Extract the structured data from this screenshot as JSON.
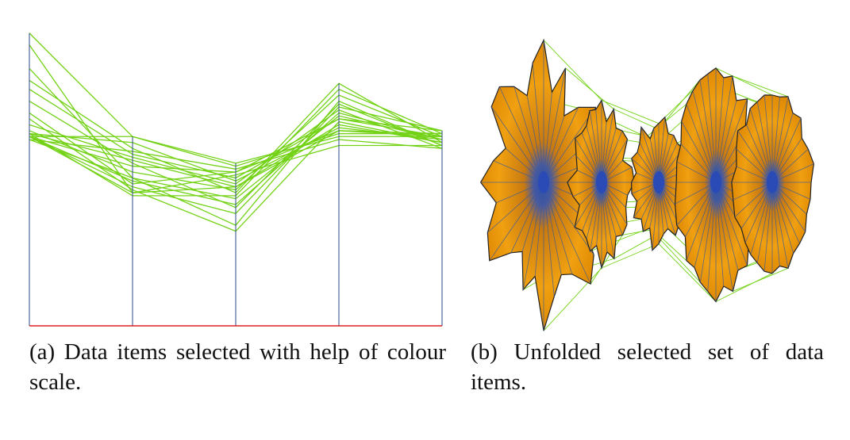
{
  "captions": {
    "a": "(a) Data items selected with help of colour scale.",
    "b": "(b) Unfolded selected set of data items."
  },
  "colors": {
    "line": "#73d216",
    "axis": "#2c4a8a",
    "baseline": "#e02020",
    "fan_orange": "#f0a010",
    "fan_dark": "#b56a06",
    "fan_center": "#2a4ab5"
  },
  "chart_data": [
    {
      "type": "line",
      "title": "",
      "axes": 5,
      "x": [
        0,
        1,
        2,
        3,
        4
      ],
      "ylim": [
        0,
        1
      ],
      "grid": false,
      "series_values": [
        [
          0.99,
          0.64,
          0.54,
          0.65,
          0.65
        ],
        [
          0.95,
          0.45,
          0.47,
          0.66,
          0.64
        ],
        [
          0.87,
          0.5,
          0.43,
          0.71,
          0.63
        ],
        [
          0.83,
          0.6,
          0.45,
          0.82,
          0.62
        ],
        [
          0.8,
          0.58,
          0.5,
          0.7,
          0.66
        ],
        [
          0.76,
          0.55,
          0.4,
          0.75,
          0.61
        ],
        [
          0.72,
          0.48,
          0.52,
          0.66,
          0.65
        ],
        [
          0.7,
          0.46,
          0.32,
          0.69,
          0.62
        ],
        [
          0.68,
          0.57,
          0.48,
          0.73,
          0.6
        ],
        [
          0.66,
          0.52,
          0.46,
          0.78,
          0.64
        ],
        [
          0.64,
          0.64,
          0.55,
          0.64,
          0.64
        ],
        [
          0.64,
          0.49,
          0.41,
          0.72,
          0.63
        ],
        [
          0.64,
          0.45,
          0.51,
          0.61,
          0.61
        ],
        [
          0.65,
          0.56,
          0.47,
          0.68,
          0.62
        ],
        [
          0.65,
          0.44,
          0.44,
          0.8,
          0.65
        ],
        [
          0.63,
          0.59,
          0.53,
          0.63,
          0.6
        ],
        [
          0.64,
          0.47,
          0.38,
          0.74,
          0.66
        ],
        [
          0.65,
          0.62,
          0.49,
          0.67,
          0.63
        ],
        [
          0.63,
          0.5,
          0.34,
          0.76,
          0.61
        ],
        [
          0.64,
          0.54,
          0.52,
          0.7,
          0.64
        ]
      ]
    },
    {
      "type": "radial",
      "title": "",
      "fans": [
        {
          "radii": [
            1.0,
            0.62,
            0.8,
            0.55,
            0.7,
            0.95,
            0.85,
            0.72,
            0.9,
            0.78,
            0.6,
            0.88,
            0.93,
            0.76,
            0.66,
            0.82
          ]
        },
        {
          "radii": [
            0.9,
            0.65,
            0.8,
            0.7,
            0.75,
            0.85,
            0.6,
            0.78,
            0.88,
            0.68,
            0.72,
            0.8,
            0.75,
            0.7,
            0.85,
            0.78
          ]
        },
        {
          "radii": [
            0.85,
            0.92,
            0.7,
            0.8,
            0.75,
            0.88,
            0.66,
            0.82,
            0.78,
            0.7,
            0.86,
            0.72,
            0.8,
            0.9,
            0.68,
            0.76
          ]
        },
        {
          "radii": [
            0.95,
            0.85,
            0.88,
            0.8,
            0.92,
            0.78,
            0.86,
            0.9,
            0.82,
            0.88,
            0.8,
            0.84,
            0.9,
            0.86,
            0.92,
            0.88
          ]
        },
        {
          "radii": [
            0.92,
            0.88,
            0.9,
            0.86,
            0.9,
            0.84,
            0.88,
            0.92,
            0.9,
            0.86,
            0.88,
            0.9,
            0.84,
            0.88,
            0.92,
            0.9
          ]
        }
      ]
    }
  ]
}
